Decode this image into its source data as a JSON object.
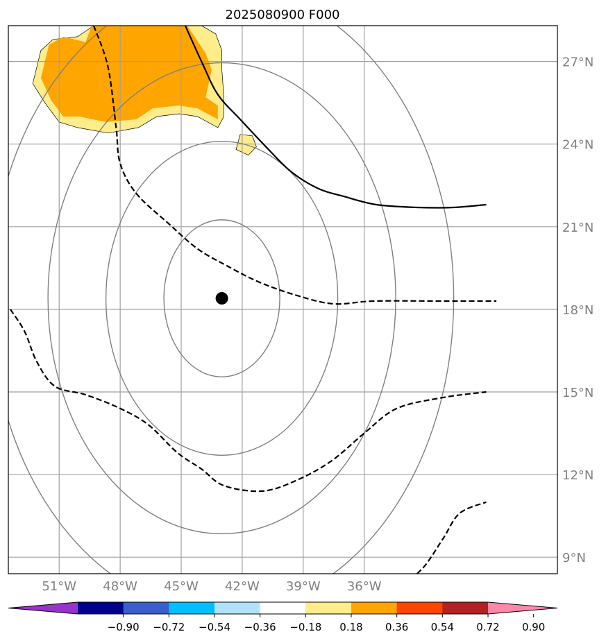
{
  "chart_data": {
    "type": "map",
    "title": "2025080900 F000",
    "projection": "plate-carree",
    "lon_range": [
      -53.5,
      -26.5
    ],
    "lat_range": [
      8.4,
      28.3
    ],
    "xticks": [
      -51,
      -48,
      -45,
      -42,
      -39,
      -36
    ],
    "xtick_labels": [
      "51°W",
      "48°W",
      "45°W",
      "42°W",
      "39°W",
      "36°W"
    ],
    "yticks": [
      9,
      12,
      15,
      18,
      21,
      24,
      27
    ],
    "ytick_labels": [
      "9°N",
      "12°N",
      "15°N",
      "18°N",
      "21°N",
      "24°N",
      "27°N"
    ],
    "grid": true,
    "center_marker": {
      "lon": -43,
      "lat": 18.4
    },
    "range_rings_degrees": [
      2.85,
      5.7,
      8.55,
      11.4
    ],
    "filled_contour": {
      "levels": [
        -0.9,
        -0.72,
        -0.54,
        -0.36,
        -0.18,
        0.18,
        0.36,
        0.54,
        0.72,
        0.9
      ],
      "colors": [
        "#9933cc",
        "#00008b",
        "#3a5fcd",
        "#00bfff",
        "#b0e2ff",
        "#ffffff",
        "#ffec8b",
        "#ffa500",
        "#ff4500",
        "#b22222",
        "#ff88aa"
      ],
      "regions": [
        {
          "band": "0.36 to 0.54",
          "lonlat": [
            [
              -49.4,
              28.3
            ],
            [
              -44.7,
              28.3
            ],
            [
              -43.8,
              27.3
            ],
            [
              -43.5,
              26.7
            ],
            [
              -43.8,
              25.7
            ],
            [
              -43.2,
              25.4
            ],
            [
              -43.2,
              24.9
            ],
            [
              -44.2,
              25.3
            ],
            [
              -45.1,
              25.4
            ],
            [
              -46.4,
              25.3
            ],
            [
              -47.2,
              24.9
            ],
            [
              -48.7,
              24.8
            ],
            [
              -50.0,
              25.0
            ],
            [
              -50.8,
              25.0
            ],
            [
              -51.4,
              25.6
            ],
            [
              -51.9,
              26.4
            ],
            [
              -51.5,
              27.6
            ],
            [
              -50.8,
              27.9
            ],
            [
              -49.7,
              27.7
            ]
          ]
        }
      ],
      "edge_regions": [
        {
          "band": "0.18 to 0.36",
          "lonlat": [
            [
              -49.3,
              28.3
            ],
            [
              -44.0,
              28.3
            ],
            [
              -43.3,
              28.0
            ],
            [
              -43.0,
              27.4
            ],
            [
              -43.0,
              26.7
            ],
            [
              -42.9,
              25.7
            ],
            [
              -42.9,
              25.0
            ],
            [
              -43.2,
              24.6
            ],
            [
              -44.2,
              25.0
            ],
            [
              -45.1,
              25.1
            ],
            [
              -46.2,
              25.0
            ],
            [
              -47.1,
              24.6
            ],
            [
              -48.6,
              24.4
            ],
            [
              -50.1,
              24.6
            ],
            [
              -51.0,
              24.8
            ],
            [
              -51.7,
              25.5
            ],
            [
              -52.3,
              26.2
            ],
            [
              -51.9,
              27.4
            ],
            [
              -51.3,
              27.8
            ],
            [
              -50.1,
              27.9
            ]
          ]
        },
        {
          "band": "0.18 to 0.36",
          "lonlat": [
            [
              -42.1,
              24.35
            ],
            [
              -41.5,
              24.3
            ],
            [
              -41.3,
              23.9
            ],
            [
              -41.7,
              23.6
            ],
            [
              -42.3,
              23.8
            ]
          ]
        }
      ]
    },
    "contours": [
      {
        "style": "solid",
        "lonlat": [
          [
            -44.8,
            28.3
          ],
          [
            -44.0,
            27.0
          ],
          [
            -43.2,
            25.8
          ],
          [
            -42.1,
            24.9
          ],
          [
            -40.7,
            23.8
          ],
          [
            -39.6,
            23.0
          ],
          [
            -38.3,
            22.4
          ],
          [
            -37.0,
            22.1
          ],
          [
            -35.4,
            21.8
          ],
          [
            -33.4,
            21.7
          ],
          [
            -31.6,
            21.7
          ],
          [
            -30.0,
            21.8
          ]
        ]
      },
      {
        "style": "dashed",
        "lonlat": [
          [
            -49.3,
            28.3
          ],
          [
            -48.6,
            26.8
          ],
          [
            -48.2,
            24.6
          ],
          [
            -48.0,
            23.3
          ],
          [
            -47.2,
            22.2
          ],
          [
            -45.6,
            21.1
          ],
          [
            -44.2,
            20.2
          ],
          [
            -42.8,
            19.6
          ],
          [
            -41.2,
            19.0
          ],
          [
            -39.3,
            18.5
          ],
          [
            -37.5,
            18.2
          ],
          [
            -35.5,
            18.3
          ],
          [
            -32.0,
            18.3
          ],
          [
            -29.5,
            18.3
          ]
        ]
      },
      {
        "style": "dashed",
        "lonlat": [
          [
            -53.4,
            18.0
          ],
          [
            -52.7,
            17.2
          ],
          [
            -52.1,
            16.1
          ],
          [
            -51.2,
            15.2
          ],
          [
            -49.7,
            14.9
          ],
          [
            -48.0,
            14.4
          ],
          [
            -46.6,
            13.8
          ],
          [
            -45.2,
            12.8
          ],
          [
            -44.0,
            12.2
          ],
          [
            -42.9,
            11.6
          ],
          [
            -41.0,
            11.4
          ],
          [
            -39.3,
            11.8
          ],
          [
            -37.6,
            12.5
          ],
          [
            -36.0,
            13.5
          ],
          [
            -34.4,
            14.4
          ],
          [
            -32.1,
            14.8
          ],
          [
            -30.0,
            15.0
          ]
        ]
      },
      {
        "style": "dashed",
        "lonlat": [
          [
            -33.4,
            8.4
          ],
          [
            -32.9,
            8.8
          ],
          [
            -32.1,
            9.7
          ],
          [
            -31.3,
            10.6
          ],
          [
            -30.0,
            11.0
          ]
        ]
      }
    ],
    "colorbar": {
      "orientation": "horizontal",
      "extend": "both",
      "tick_values": [
        -0.9,
        -0.72,
        -0.54,
        -0.36,
        -0.18,
        0.18,
        0.36,
        0.54,
        0.72,
        0.9
      ],
      "tick_labels": [
        "−0.90",
        "−0.72",
        "−0.54",
        "−0.36",
        "−0.18",
        "0.18",
        "0.36",
        "0.54",
        "0.72",
        "0.90"
      ]
    }
  }
}
